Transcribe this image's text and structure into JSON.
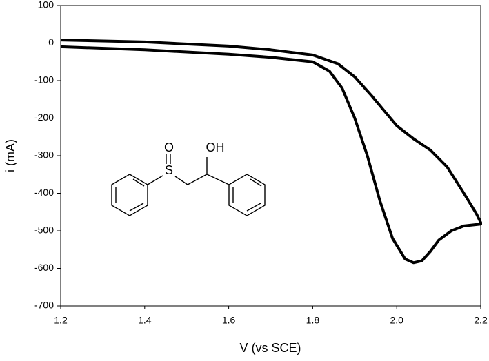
{
  "chart_data": {
    "type": "line",
    "x_label": "V (vs SCE)",
    "y_label": "i (mA)",
    "x": [
      1.2,
      1.4,
      1.6,
      1.7,
      1.8,
      1.84,
      1.87,
      1.9,
      1.93,
      1.96,
      1.99,
      2.02,
      2.04,
      2.06,
      2.08,
      2.1,
      2.13,
      2.16,
      2.2,
      2.2,
      2.19,
      2.16,
      2.12,
      2.08,
      2.04,
      2.0,
      1.97,
      1.94,
      1.9,
      1.86,
      1.8,
      1.7,
      1.6,
      1.4,
      1.2
    ],
    "values": [
      -10,
      -18,
      -30,
      -38,
      -50,
      -75,
      -120,
      -200,
      -300,
      -420,
      -520,
      -575,
      -585,
      -580,
      -555,
      -525,
      -500,
      -487,
      -482,
      -478,
      -455,
      -400,
      -330,
      -285,
      -255,
      -220,
      -180,
      -140,
      -90,
      -55,
      -32,
      -18,
      -8,
      3,
      8
    ],
    "color": "#000000",
    "xlim": [
      1.2,
      2.2
    ],
    "xticks": [
      1.2,
      1.4,
      1.6,
      1.8,
      {
        "value": 2,
        "label": "2.0"
      },
      2.2
    ],
    "ylim": [
      -700,
      100
    ],
    "yticks": [
      -700,
      -600,
      -500,
      -400,
      -300,
      -200,
      -100,
      0,
      100
    ],
    "grid": false,
    "structure_labels": [
      "S",
      "O",
      "OH"
    ]
  }
}
